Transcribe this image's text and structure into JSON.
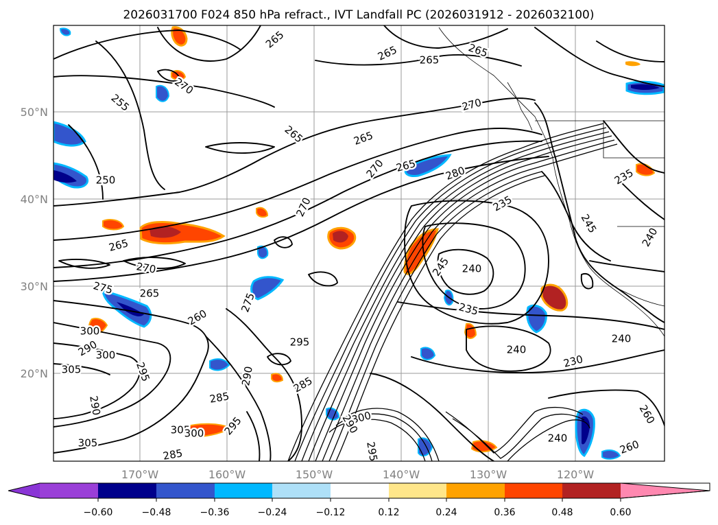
{
  "title": "2026031700 F024 850 hPa refract., IVT Landfall PC (2026031912 - 2026032100)",
  "lat_labels": [
    "50°N",
    "40°N",
    "30°N",
    "20°N"
  ],
  "lon_labels": [
    "170°W",
    "160°W",
    "150°W",
    "140°W",
    "130°W",
    "120°W"
  ],
  "colorbar": {
    "ticks": [
      "−0.60",
      "−0.48",
      "−0.36",
      "−0.24",
      "−0.12",
      "0.12",
      "0.24",
      "0.36",
      "0.48",
      "0.60"
    ],
    "under_color": "#8a35d6",
    "over_color": "#ff88b0",
    "colors": [
      "#9a3fd8",
      "#00008b",
      "#3355cc",
      "#00b8ff",
      "#aee0f8",
      "#ffffff",
      "#ffe68a",
      "#ffa200",
      "#ff4500",
      "#b22222"
    ]
  },
  "contour_labels": [
    "265",
    "265",
    "265",
    "265",
    "255",
    "270",
    "265",
    "265",
    "270",
    "265",
    "250",
    "280",
    "235",
    "270",
    "245",
    "265",
    "270",
    "270",
    "245",
    "240",
    "240",
    "275",
    "265",
    "275",
    "260",
    "235",
    "235",
    "300",
    "290",
    "300",
    "295",
    "240",
    "305",
    "295",
    "240",
    "230",
    "290",
    "285",
    "290",
    "285",
    "305",
    "300",
    "300",
    "290",
    "295",
    "260",
    "305",
    "285",
    "295",
    "240",
    "260"
  ],
  "map": {
    "projection": "cylindrical",
    "region": "North Pacific",
    "field": "850 hPa refractivity contours with IVT landfall principal component shading"
  }
}
